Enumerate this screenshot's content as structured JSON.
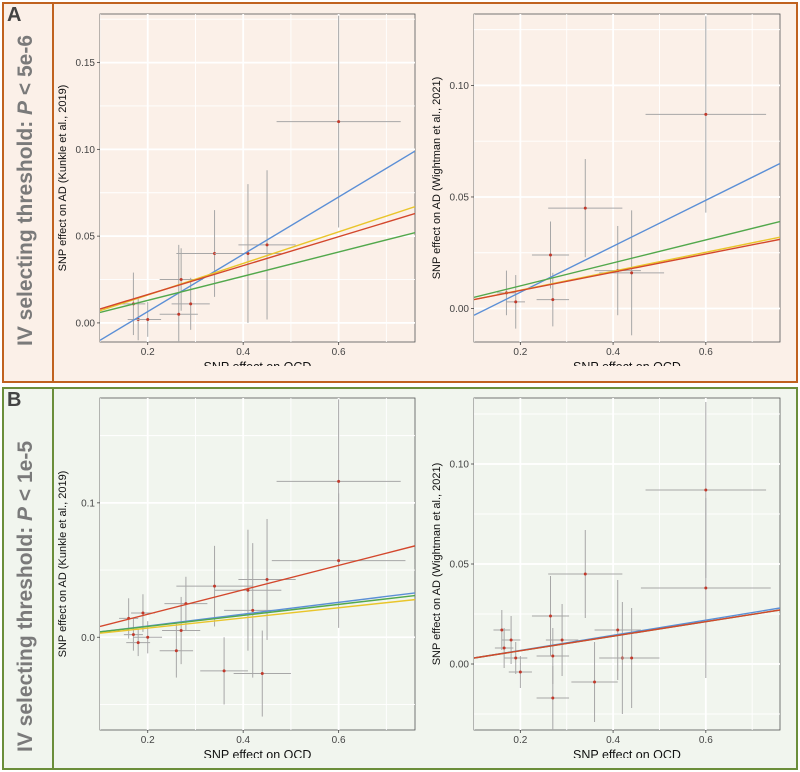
{
  "panels": [
    {
      "letter": "A",
      "side_label_prefix": "IV selecting threshold: ",
      "side_label_italic": "P",
      "side_label_suffix": " < 5e-6",
      "frame_color": "#c0621f",
      "bg_color": "#fbf0e8"
    },
    {
      "letter": "B",
      "side_label_prefix": "IV selecting threshold: ",
      "side_label_italic": "P",
      "side_label_suffix": " < 1e-5",
      "frame_color": "#6b8e3a",
      "bg_color": "#f1f5ee"
    }
  ],
  "line_colors": {
    "blue": "#5b8fd6",
    "green": "#52a84c",
    "yellow": "#e9c52a",
    "red": "#d3472c"
  },
  "chart_data": [
    {
      "type": "scatter",
      "xlabel": "SNP effect on OCD",
      "ylabel": "SNP effect on AD (Kunkle et al., 2019)",
      "xlim": [
        0.1,
        0.76
      ],
      "ylim": [
        -0.011,
        0.178
      ],
      "xticks": [
        0.2,
        0.4,
        0.6
      ],
      "yticks": [
        0.0,
        0.05,
        0.1,
        0.15
      ],
      "ytick_labels": [
        "0.00",
        "0.05",
        "0.10",
        "0.15"
      ],
      "points": [
        {
          "x": 0.17,
          "y": 0.011,
          "xerr": 0.025,
          "yerr": 0.018
        },
        {
          "x": 0.18,
          "y": 0.002,
          "xerr": 0.022,
          "yerr": 0.012
        },
        {
          "x": 0.2,
          "y": 0.002,
          "xerr": 0.028,
          "yerr": 0.01
        },
        {
          "x": 0.265,
          "y": 0.005,
          "xerr": 0.04,
          "yerr": 0.04
        },
        {
          "x": 0.27,
          "y": 0.025,
          "xerr": 0.045,
          "yerr": 0.018
        },
        {
          "x": 0.29,
          "y": 0.011,
          "xerr": 0.04,
          "yerr": 0.015
        },
        {
          "x": 0.34,
          "y": 0.04,
          "xerr": 0.08,
          "yerr": 0.025
        },
        {
          "x": 0.41,
          "y": 0.04,
          "xerr": 0.07,
          "yerr": 0.04
        },
        {
          "x": 0.45,
          "y": 0.045,
          "xerr": 0.06,
          "yerr": 0.043
        },
        {
          "x": 0.6,
          "y": 0.116,
          "xerr": 0.13,
          "yerr": 0.061
        }
      ],
      "lines": [
        {
          "color": "blue",
          "x": [
            0.1,
            0.76
          ],
          "y": [
            -0.01,
            0.099
          ]
        },
        {
          "color": "yellow",
          "x": [
            0.1,
            0.76
          ],
          "y": [
            0.007,
            0.067
          ]
        },
        {
          "color": "red",
          "x": [
            0.1,
            0.76
          ],
          "y": [
            0.008,
            0.063
          ]
        },
        {
          "color": "green",
          "x": [
            0.1,
            0.76
          ],
          "y": [
            0.006,
            0.052
          ]
        }
      ]
    },
    {
      "type": "scatter",
      "xlabel": "SNP effect on OCD",
      "ylabel": "SNP effect on AD (Wightman et al., 2021)",
      "xlim": [
        0.1,
        0.76
      ],
      "ylim": [
        -0.015,
        0.132
      ],
      "xticks": [
        0.2,
        0.4,
        0.6
      ],
      "yticks": [
        0.0,
        0.05,
        0.1
      ],
      "ytick_labels": [
        "0.00",
        "0.05",
        "0.10"
      ],
      "points": [
        {
          "x": 0.17,
          "y": 0.007,
          "xerr": 0.02,
          "yerr": 0.01
        },
        {
          "x": 0.19,
          "y": 0.003,
          "xerr": 0.02,
          "yerr": 0.012
        },
        {
          "x": 0.265,
          "y": 0.024,
          "xerr": 0.04,
          "yerr": 0.015
        },
        {
          "x": 0.27,
          "y": 0.004,
          "xerr": 0.035,
          "yerr": 0.012
        },
        {
          "x": 0.34,
          "y": 0.045,
          "xerr": 0.08,
          "yerr": 0.022
        },
        {
          "x": 0.41,
          "y": 0.017,
          "xerr": 0.05,
          "yerr": 0.02
        },
        {
          "x": 0.44,
          "y": 0.016,
          "xerr": 0.07,
          "yerr": 0.028
        },
        {
          "x": 0.6,
          "y": 0.087,
          "xerr": 0.13,
          "yerr": 0.044
        }
      ],
      "lines": [
        {
          "color": "blue",
          "x": [
            0.1,
            0.76
          ],
          "y": [
            -0.003,
            0.065
          ]
        },
        {
          "color": "green",
          "x": [
            0.1,
            0.76
          ],
          "y": [
            0.005,
            0.039
          ]
        },
        {
          "color": "yellow",
          "x": [
            0.1,
            0.76
          ],
          "y": [
            0.004,
            0.032
          ]
        },
        {
          "color": "red",
          "x": [
            0.1,
            0.76
          ],
          "y": [
            0.004,
            0.031
          ]
        }
      ]
    },
    {
      "type": "scatter",
      "xlabel": "SNP effect on OCD",
      "ylabel": "SNP effect on AD (Kunkle et al., 2019)",
      "xlim": [
        0.1,
        0.76
      ],
      "ylim": [
        -0.069,
        0.178
      ],
      "xticks": [
        0.2,
        0.4,
        0.6
      ],
      "yticks": [
        0.0,
        0.1
      ],
      "ytick_labels": [
        "0.0",
        "0.1"
      ],
      "points": [
        {
          "x": 0.16,
          "y": 0.014,
          "xerr": 0.02,
          "yerr": 0.015
        },
        {
          "x": 0.17,
          "y": 0.002,
          "xerr": 0.02,
          "yerr": 0.012
        },
        {
          "x": 0.18,
          "y": -0.004,
          "xerr": 0.025,
          "yerr": 0.01
        },
        {
          "x": 0.19,
          "y": 0.018,
          "xerr": 0.025,
          "yerr": 0.014
        },
        {
          "x": 0.2,
          "y": 0.0,
          "xerr": 0.03,
          "yerr": 0.012
        },
        {
          "x": 0.26,
          "y": -0.01,
          "xerr": 0.035,
          "yerr": 0.02
        },
        {
          "x": 0.27,
          "y": 0.005,
          "xerr": 0.04,
          "yerr": 0.025
        },
        {
          "x": 0.28,
          "y": 0.025,
          "xerr": 0.045,
          "yerr": 0.02
        },
        {
          "x": 0.34,
          "y": 0.038,
          "xerr": 0.08,
          "yerr": 0.03
        },
        {
          "x": 0.36,
          "y": -0.025,
          "xerr": 0.05,
          "yerr": 0.025
        },
        {
          "x": 0.41,
          "y": 0.035,
          "xerr": 0.07,
          "yerr": 0.045
        },
        {
          "x": 0.42,
          "y": 0.02,
          "xerr": 0.06,
          "yerr": 0.05
        },
        {
          "x": 0.44,
          "y": -0.027,
          "xerr": 0.06,
          "yerr": 0.032
        },
        {
          "x": 0.45,
          "y": 0.043,
          "xerr": 0.06,
          "yerr": 0.045
        },
        {
          "x": 0.6,
          "y": 0.116,
          "xerr": 0.13,
          "yerr": 0.061
        },
        {
          "x": 0.6,
          "y": 0.057,
          "xerr": 0.14,
          "yerr": 0.05
        }
      ],
      "lines": [
        {
          "color": "red",
          "x": [
            0.1,
            0.76
          ],
          "y": [
            0.008,
            0.068
          ]
        },
        {
          "color": "blue",
          "x": [
            0.1,
            0.76
          ],
          "y": [
            0.004,
            0.033
          ]
        },
        {
          "color": "green",
          "x": [
            0.1,
            0.76
          ],
          "y": [
            0.004,
            0.031
          ]
        },
        {
          "color": "yellow",
          "x": [
            0.1,
            0.76
          ],
          "y": [
            0.003,
            0.028
          ]
        }
      ]
    },
    {
      "type": "scatter",
      "xlabel": "SNP effect on OCD",
      "ylabel": "SNP effect on AD (Wightman et al., 2021)",
      "xlim": [
        0.1,
        0.76
      ],
      "ylim": [
        -0.033,
        0.133
      ],
      "xticks": [
        0.2,
        0.4,
        0.6
      ],
      "yticks": [
        0.0,
        0.05,
        0.1
      ],
      "ytick_labels": [
        "0.00",
        "0.05",
        "0.10"
      ],
      "points": [
        {
          "x": 0.16,
          "y": 0.017,
          "xerr": 0.018,
          "yerr": 0.01
        },
        {
          "x": 0.165,
          "y": 0.008,
          "xerr": 0.02,
          "yerr": 0.01
        },
        {
          "x": 0.18,
          "y": 0.012,
          "xerr": 0.02,
          "yerr": 0.012
        },
        {
          "x": 0.19,
          "y": 0.003,
          "xerr": 0.025,
          "yerr": 0.008
        },
        {
          "x": 0.2,
          "y": -0.004,
          "xerr": 0.025,
          "yerr": 0.008
        },
        {
          "x": 0.265,
          "y": 0.024,
          "xerr": 0.04,
          "yerr": 0.02
        },
        {
          "x": 0.27,
          "y": -0.017,
          "xerr": 0.035,
          "yerr": 0.016
        },
        {
          "x": 0.27,
          "y": 0.004,
          "xerr": 0.035,
          "yerr": 0.014
        },
        {
          "x": 0.29,
          "y": 0.012,
          "xerr": 0.035,
          "yerr": 0.018
        },
        {
          "x": 0.34,
          "y": 0.045,
          "xerr": 0.08,
          "yerr": 0.022
        },
        {
          "x": 0.36,
          "y": -0.009,
          "xerr": 0.05,
          "yerr": 0.02
        },
        {
          "x": 0.41,
          "y": 0.017,
          "xerr": 0.05,
          "yerr": 0.025
        },
        {
          "x": 0.42,
          "y": 0.003,
          "xerr": 0.05,
          "yerr": 0.028
        },
        {
          "x": 0.44,
          "y": 0.003,
          "xerr": 0.06,
          "yerr": 0.025
        },
        {
          "x": 0.6,
          "y": 0.087,
          "xerr": 0.13,
          "yerr": 0.044
        },
        {
          "x": 0.6,
          "y": 0.038,
          "xerr": 0.14,
          "yerr": 0.045
        }
      ],
      "lines": [
        {
          "color": "blue",
          "x": [
            0.1,
            0.76
          ],
          "y": [
            0.003,
            0.028
          ]
        },
        {
          "color": "green",
          "x": [
            0.1,
            0.76
          ],
          "y": [
            0.003,
            0.027
          ]
        },
        {
          "color": "red",
          "x": [
            0.1,
            0.76
          ],
          "y": [
            0.003,
            0.027
          ]
        }
      ]
    }
  ]
}
